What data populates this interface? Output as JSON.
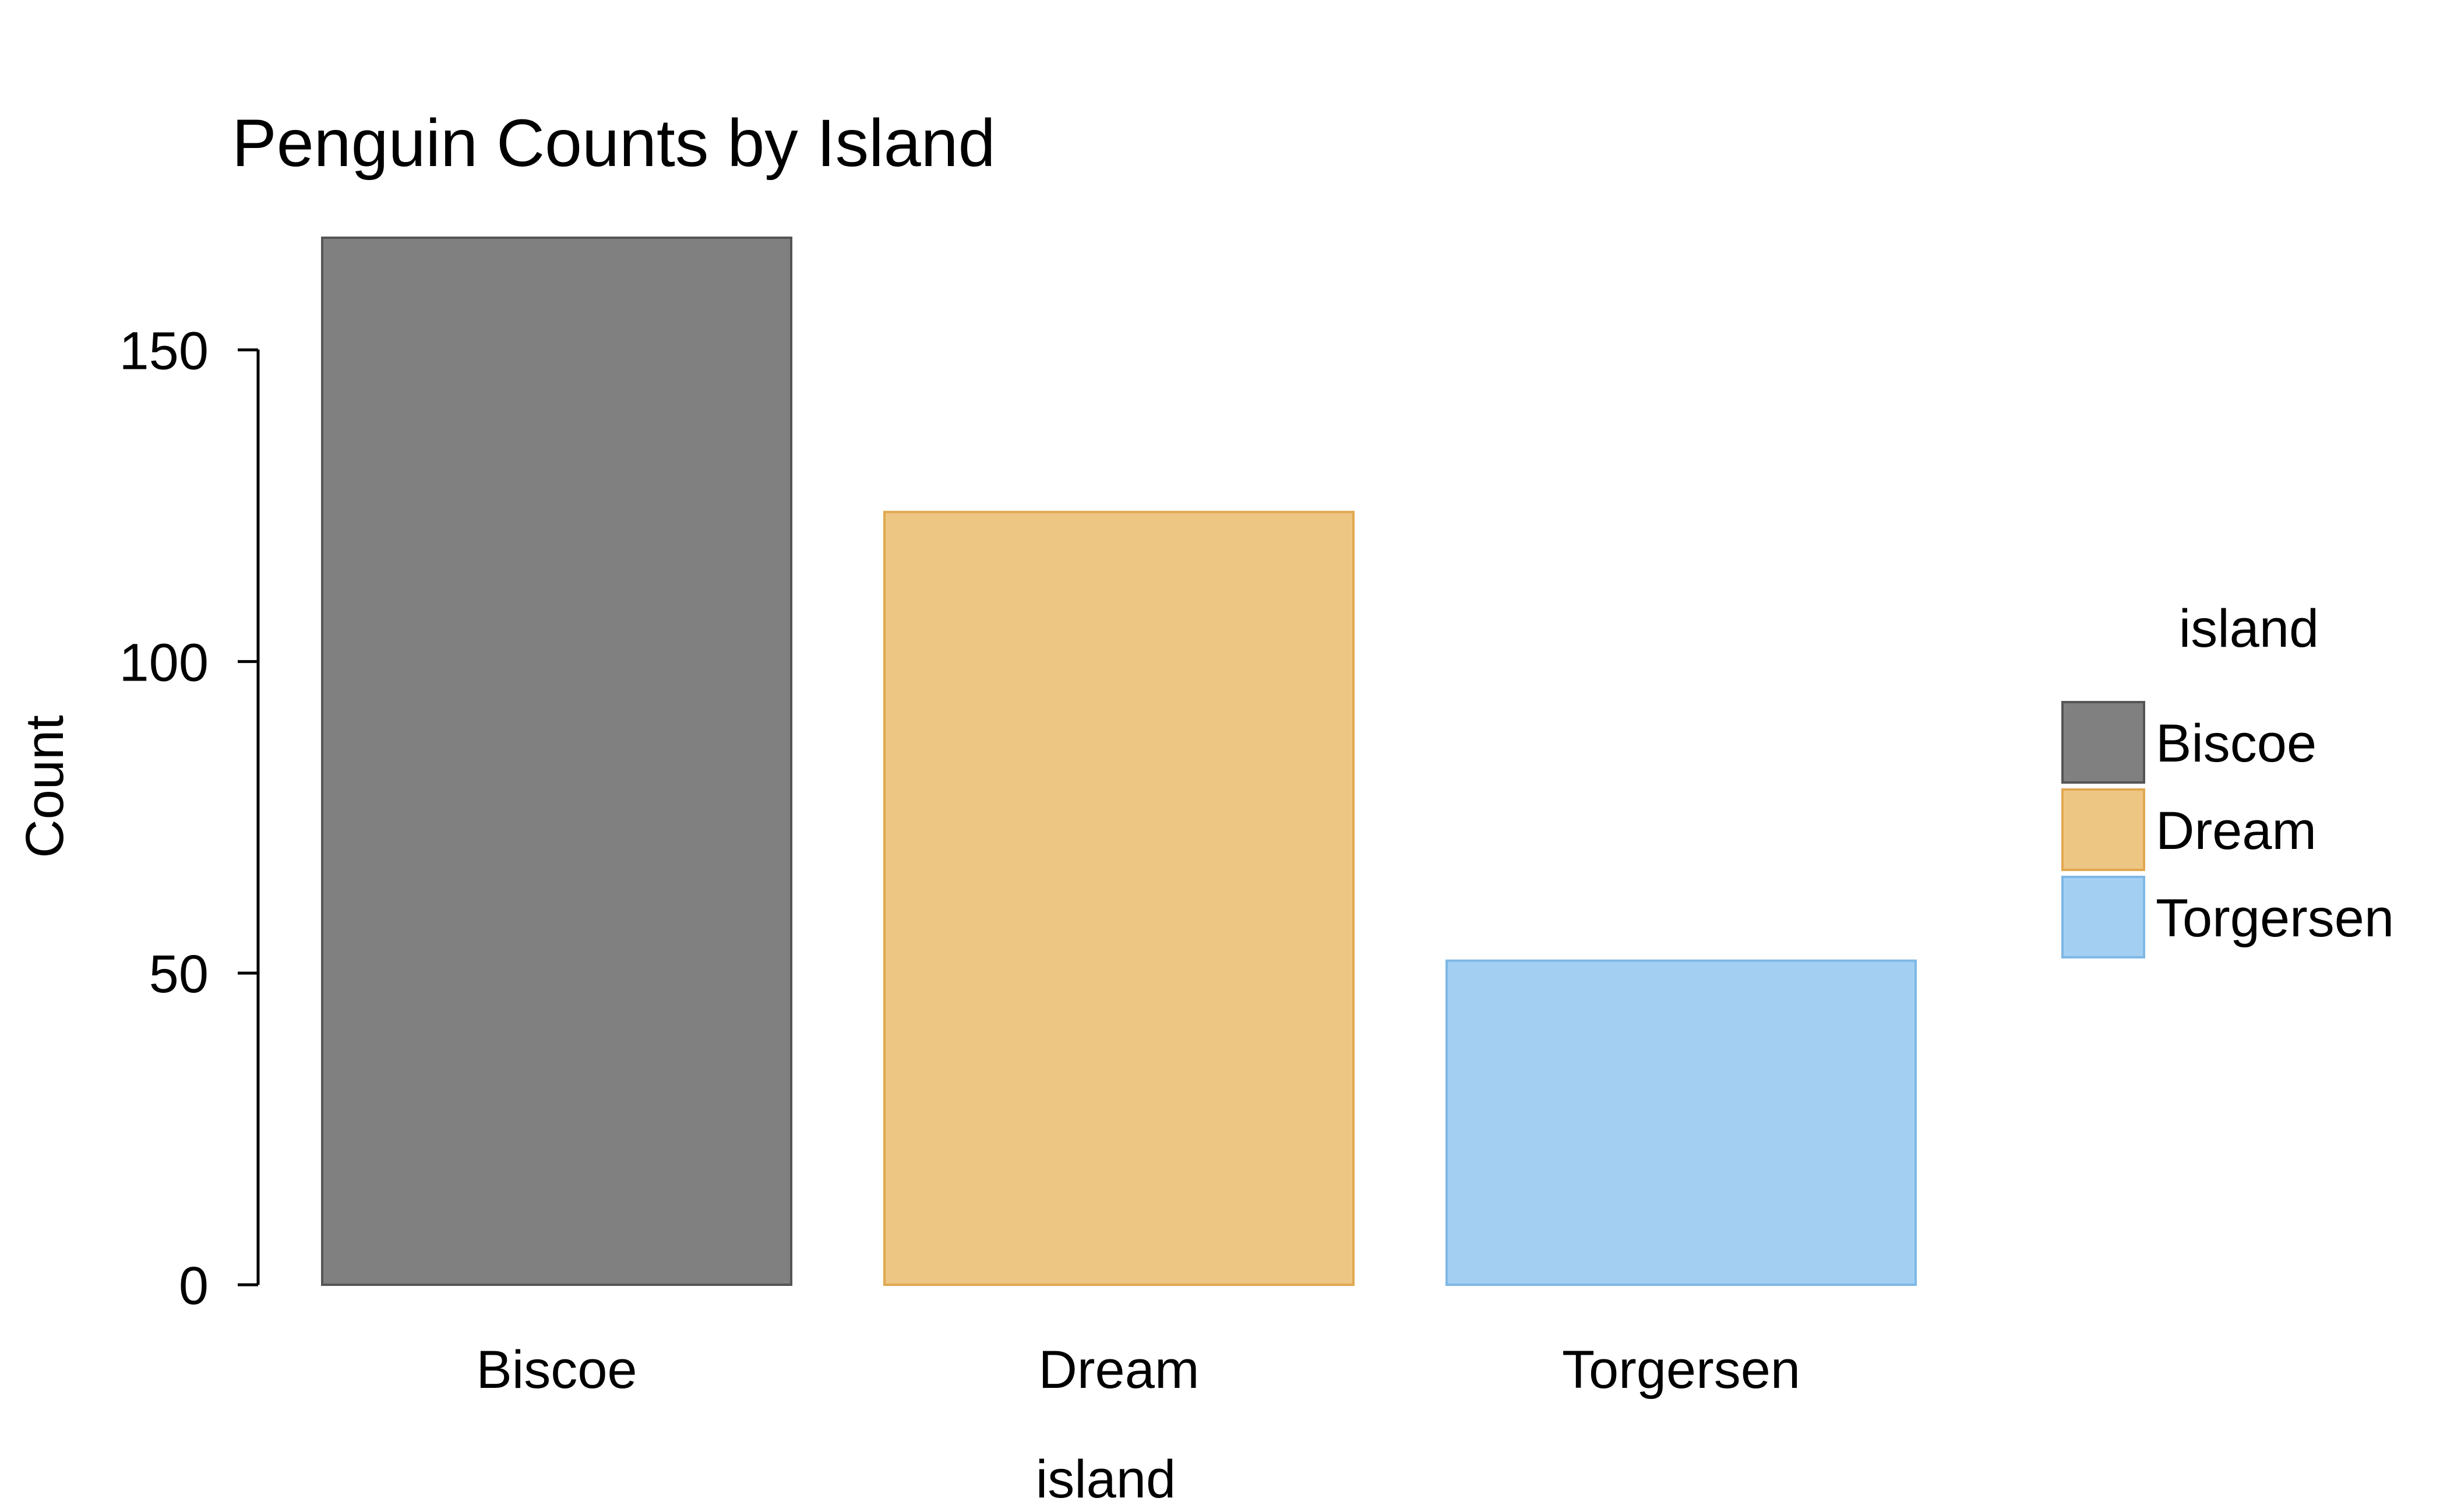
{
  "chart_data": {
    "type": "bar",
    "title": "Penguin Counts by Island",
    "xlabel": "island",
    "ylabel": "Count",
    "categories": [
      "Biscoe",
      "Dream",
      "Torgersen"
    ],
    "values": [
      168,
      124,
      52
    ],
    "ylim": [
      0,
      168
    ],
    "yticks": [
      0,
      50,
      100,
      150
    ],
    "ytick_labels": [
      "0",
      "50",
      "100",
      "150"
    ],
    "grid": false,
    "legend": {
      "title": "island",
      "position": "right",
      "entries": [
        "Biscoe",
        "Dream",
        "Torgersen"
      ]
    },
    "colors": {
      "fill": [
        "#808080",
        "#EEC684",
        "#A3D0F2"
      ],
      "stroke": [
        "#555555",
        "#E0A850",
        "#7DB8E6"
      ]
    }
  }
}
